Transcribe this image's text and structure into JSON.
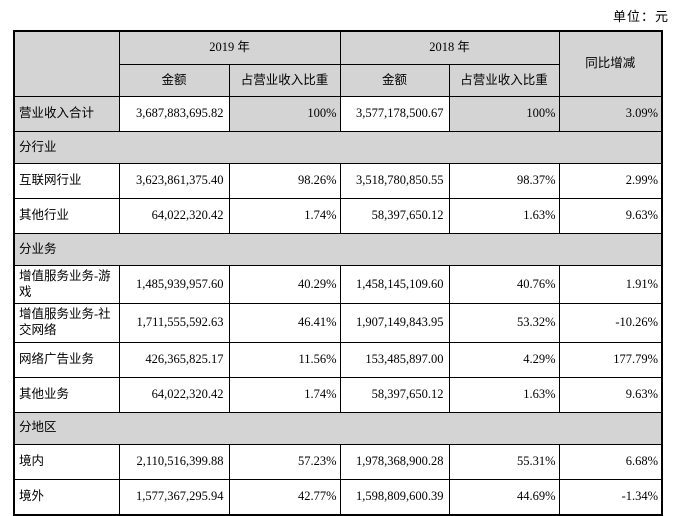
{
  "unit_label": "单位：元",
  "colors": {
    "header_bg": "#d4d4d4",
    "border": "#000000",
    "row_bg": "#ffffff"
  },
  "table": {
    "header": {
      "year_2019": "2019 年",
      "year_2018": "2018 年",
      "yoy": "同比增减",
      "amount": "金额",
      "share": "占营业收入比重"
    },
    "rows": [
      {
        "type": "data",
        "highlight": true,
        "label": "营业收入合计",
        "a2019": "3,687,883,695.82",
        "p2019": "100%",
        "a2018": "3,577,178,500.67",
        "p2018": "100%",
        "yoy": "3.09%"
      },
      {
        "type": "section",
        "label": "分行业"
      },
      {
        "type": "data",
        "label": "互联网行业",
        "a2019": "3,623,861,375.40",
        "p2019": "98.26%",
        "a2018": "3,518,780,850.55",
        "p2018": "98.37%",
        "yoy": "2.99%"
      },
      {
        "type": "data",
        "label": "其他行业",
        "a2019": "64,022,320.42",
        "p2019": "1.74%",
        "a2018": "58,397,650.12",
        "p2018": "1.63%",
        "yoy": "9.63%"
      },
      {
        "type": "section",
        "label": "分业务"
      },
      {
        "type": "data",
        "label": "增值服务业务-游戏",
        "a2019": "1,485,939,957.60",
        "p2019": "40.29%",
        "a2018": "1,458,145,109.60",
        "p2018": "40.76%",
        "yoy": "1.91%"
      },
      {
        "type": "data",
        "label": "增值服务业务-社交网络",
        "a2019": "1,711,555,592.63",
        "p2019": "46.41%",
        "a2018": "1,907,149,843.95",
        "p2018": "53.32%",
        "yoy": "-10.26%"
      },
      {
        "type": "data",
        "label": "网络广告业务",
        "a2019": "426,365,825.17",
        "p2019": "11.56%",
        "a2018": "153,485,897.00",
        "p2018": "4.29%",
        "yoy": "177.79%"
      },
      {
        "type": "data",
        "label": "其他业务",
        "a2019": "64,022,320.42",
        "p2019": "1.74%",
        "a2018": "58,397,650.12",
        "p2018": "1.63%",
        "yoy": "9.63%"
      },
      {
        "type": "section",
        "label": "分地区"
      },
      {
        "type": "data",
        "label": "境内",
        "a2019": "2,110,516,399.88",
        "p2019": "57.23%",
        "a2018": "1,978,368,900.28",
        "p2018": "55.31%",
        "yoy": "6.68%"
      },
      {
        "type": "data",
        "label": "境外",
        "a2019": "1,577,367,295.94",
        "p2019": "42.77%",
        "a2018": "1,598,809,600.39",
        "p2018": "44.69%",
        "yoy": "-1.34%"
      }
    ]
  }
}
